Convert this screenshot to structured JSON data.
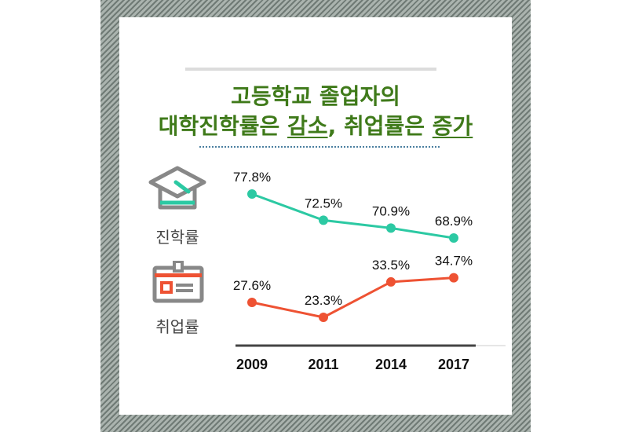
{
  "header": {
    "title_line1": "고등학교 졸업자의",
    "title_line2_part1": "대학진학률은 ",
    "title_line2_hl1": "감소",
    "title_line2_part2": ", 취업률은 ",
    "title_line2_hl2": "증가"
  },
  "legend": {
    "enrollment_label": "진학률",
    "employment_label": "취업률",
    "enrollment_icon": "graduation-cap-icon",
    "employment_icon": "id-badge-icon"
  },
  "colors": {
    "title": "#3f7a1a",
    "enrollment": "#2cc9a3",
    "employment": "#ee5233",
    "icon": "#888888"
  },
  "chart_data": {
    "type": "line",
    "categories": [
      "2009",
      "2011",
      "2014",
      "2017"
    ],
    "series": [
      {
        "name": "진학률",
        "values": [
          77.8,
          72.5,
          70.9,
          68.9
        ],
        "labels": [
          "77.8%",
          "72.5%",
          "70.9%",
          "68.9%"
        ]
      },
      {
        "name": "취업률",
        "values": [
          27.6,
          23.3,
          33.5,
          34.7
        ],
        "labels": [
          "27.6%",
          "23.3%",
          "33.5%",
          "34.7%"
        ]
      }
    ],
    "grid": false
  }
}
